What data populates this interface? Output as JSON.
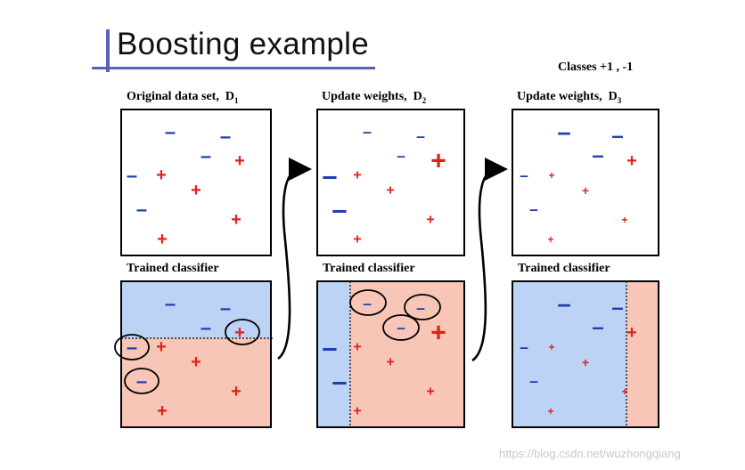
{
  "title": "Boosting example",
  "classes_note": "Classes  +1 , -1",
  "watermark": "https://blog.csdn.net/wuzhongqiang",
  "colors": {
    "accent_line": "#5b5fb5",
    "positive": "#e0211c",
    "negative": "#1f3fb0",
    "region_negative": "#bcd3f5",
    "region_positive": "#f7c6b7"
  },
  "panels": [
    {
      "top_label": "Original data set,",
      "top_sub": "1",
      "bottom_label": "Trained classifier",
      "top_letter": "D"
    },
    {
      "top_label": "Update weights,",
      "top_sub": "2",
      "bottom_label": "Trained classifier",
      "top_letter": "D"
    },
    {
      "top_label": "Update weights,",
      "top_sub": "3",
      "bottom_label": "Trained classifier",
      "top_letter": "D"
    }
  ],
  "symbols": {
    "plus": "+",
    "minus": "–"
  }
}
